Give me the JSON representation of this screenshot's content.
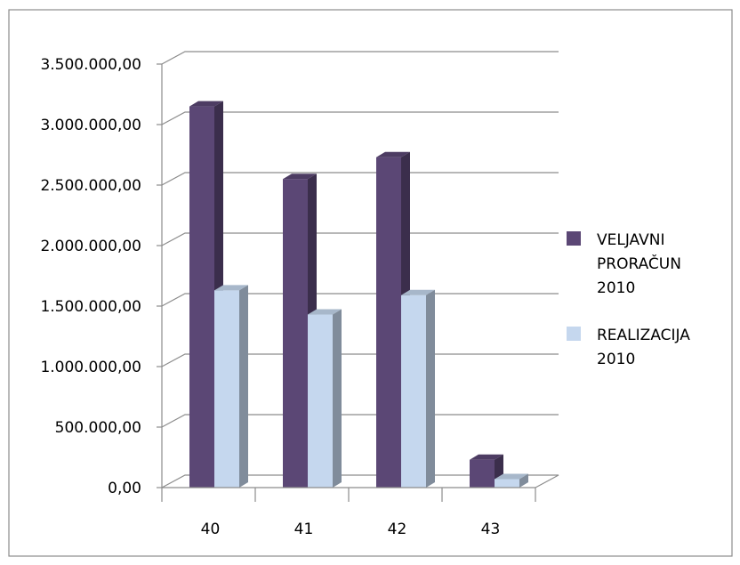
{
  "chart_data": {
    "type": "bar",
    "title": "",
    "xlabel": "",
    "ylabel": "",
    "categories": [
      "40",
      "41",
      "42",
      "43"
    ],
    "series": [
      {
        "name": "VELJAVNI PRORAČUN 2010",
        "values": [
          3150000,
          2550000,
          2730000,
          230000
        ],
        "color": "#5b4775"
      },
      {
        "name": "REALIZACIJA 2010",
        "values": [
          1630000,
          1430000,
          1590000,
          70000
        ],
        "color": "#c5d7ee"
      }
    ],
    "y_ticks": [
      "0,00",
      "500.000,00",
      "1.000.000,00",
      "1.500.000,00",
      "2.000.000,00",
      "2.500.000,00",
      "3.000.000,00",
      "3.500.000,00"
    ],
    "ylim": [
      0,
      3500000
    ],
    "grid": true,
    "legend_position": "right",
    "legend": [
      {
        "lines": [
          "VELJAVNI",
          "PRORAČUN",
          "2010"
        ]
      },
      {
        "lines": [
          "REALIZACIJA",
          "2010"
        ]
      }
    ],
    "style": "3d-clustered-column"
  }
}
